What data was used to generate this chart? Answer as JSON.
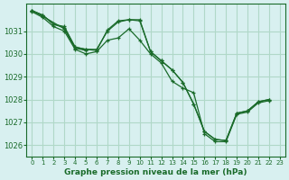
{
  "background_color": "#d8f0f0",
  "grid_color": "#b0d8c8",
  "line_color": "#1a6b2a",
  "title": "Graphe pression niveau de la mer (hPa)",
  "xlim": [
    -0.5,
    23.5
  ],
  "ylim": [
    1025.5,
    1032.2
  ],
  "yticks": [
    1026,
    1027,
    1028,
    1029,
    1030,
    1031
  ],
  "xticks": [
    0,
    1,
    2,
    3,
    4,
    5,
    6,
    7,
    8,
    9,
    10,
    11,
    12,
    13,
    14,
    15,
    16,
    17,
    18,
    19,
    20,
    21,
    22,
    23
  ],
  "series": [
    [
      1031.9,
      1031.7,
      1031.3,
      1031.2,
      1030.3,
      1030.2,
      1030.2,
      1031.0,
      1031.4,
      1031.5,
      1031.5,
      1030.1,
      1029.7,
      1029.3,
      1028.75,
      1027.8,
      1026.6,
      1026.25,
      1026.2,
      1027.4,
      1027.5,
      1027.9,
      1028.0,
      null
    ],
    [
      1031.9,
      1031.6,
      null,
      null,
      1030.3,
      1030.2,
      1030.2,
      null,
      null,
      null,
      null,
      null,
      null,
      null,
      null,
      null,
      null,
      null,
      null,
      null,
      null,
      null,
      null,
      null
    ],
    [
      1031.9,
      1031.6,
      1031.2,
      1031.0,
      1030.2,
      1030.0,
      1030.1,
      1030.6,
      1030.7,
      1031.1,
      1030.6,
      1030.0,
      1029.6,
      1028.8,
      1028.5,
      1028.3,
      1026.5,
      1026.15,
      1026.15,
      1027.35,
      1027.45,
      1027.85,
      1027.95,
      null
    ]
  ]
}
